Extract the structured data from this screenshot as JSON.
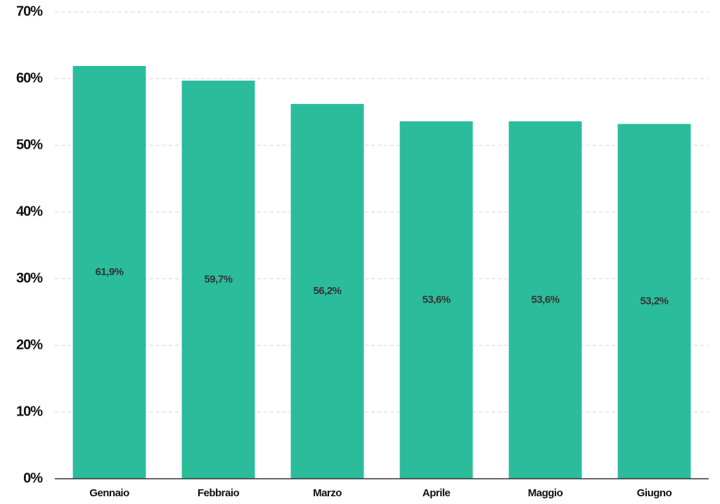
{
  "chart_data": {
    "type": "bar",
    "categories": [
      "Gennaio",
      "Febbraio",
      "Marzo",
      "Aprile",
      "Maggio",
      "Giugno"
    ],
    "values": [
      61.9,
      59.7,
      56.2,
      53.6,
      53.6,
      53.2
    ],
    "value_labels": [
      "61,9%",
      "59,7%",
      "56,2%",
      "53,6%",
      "53,6%",
      "53,2%"
    ],
    "color": "#2bbc9c",
    "ylim": [
      0,
      70
    ],
    "yticks": [
      {
        "value": 0,
        "label": "0%"
      },
      {
        "value": 10,
        "label": "10%"
      },
      {
        "value": 20,
        "label": "20%"
      },
      {
        "value": 30,
        "label": "30%"
      },
      {
        "value": 40,
        "label": "40%"
      },
      {
        "value": 50,
        "label": "50%"
      },
      {
        "value": 60,
        "label": "60%"
      },
      {
        "value": 70,
        "label": "70%"
      }
    ],
    "grid": true
  }
}
